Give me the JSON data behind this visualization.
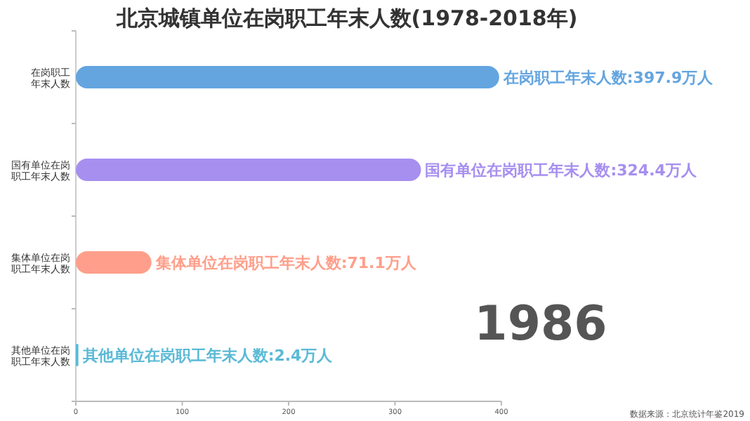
{
  "chart_data": {
    "type": "bar",
    "orientation": "horizontal",
    "title": "北京城镇单位在岗职工年末人数(1978-2018年)",
    "categories": [
      "在岗职工年末人数",
      "国有单位在岗职工年末人数",
      "集体单位在岗职工年末人数",
      "其他单位在岗职工年末人数"
    ],
    "values": [
      397.9,
      324.4,
      71.1,
      2.4
    ],
    "colors": [
      "#64a5e0",
      "#a78ff0",
      "#ff9f8b",
      "#5bbad6"
    ],
    "value_labels": [
      "在岗职工年末人数:397.9万人",
      "国有单位在岗职工年末人数:324.4万人",
      "集体单位在岗职工年末人数:71.1万人",
      "其他单位在岗职工年末人数:2.4万人"
    ],
    "xlim": [
      0,
      400
    ],
    "xticks": [
      0,
      100,
      200,
      300,
      400
    ],
    "grid": false,
    "annotations": [
      "1986",
      "数据来源：北京统计年鉴2019"
    ]
  }
}
